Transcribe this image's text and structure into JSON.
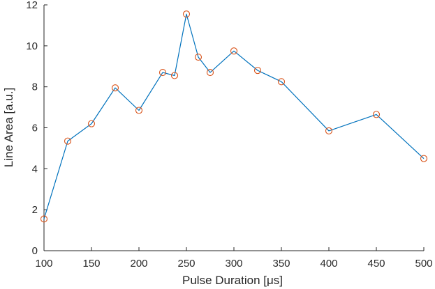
{
  "chart_data": {
    "type": "line",
    "title": "",
    "xlabel": "Pulse Duration [μs]",
    "ylabel": "Line Area [a.u.]",
    "xlim": [
      100,
      500
    ],
    "ylim": [
      0,
      12
    ],
    "xticks": [
      100,
      150,
      200,
      250,
      300,
      350,
      400,
      450,
      500
    ],
    "yticks": [
      0,
      2,
      4,
      6,
      8,
      10,
      12
    ],
    "grid": false,
    "line_color": "#0072BD",
    "marker_color": "#D95319",
    "marker": "open-circle",
    "x": [
      100,
      125,
      150,
      175,
      200,
      225,
      237.5,
      250,
      262.5,
      275,
      300,
      325,
      350,
      400,
      450,
      500
    ],
    "y": [
      1.55,
      5.35,
      6.2,
      7.95,
      6.85,
      8.7,
      8.55,
      11.55,
      9.45,
      8.7,
      9.75,
      8.8,
      8.25,
      5.85,
      6.65,
      4.5
    ]
  }
}
